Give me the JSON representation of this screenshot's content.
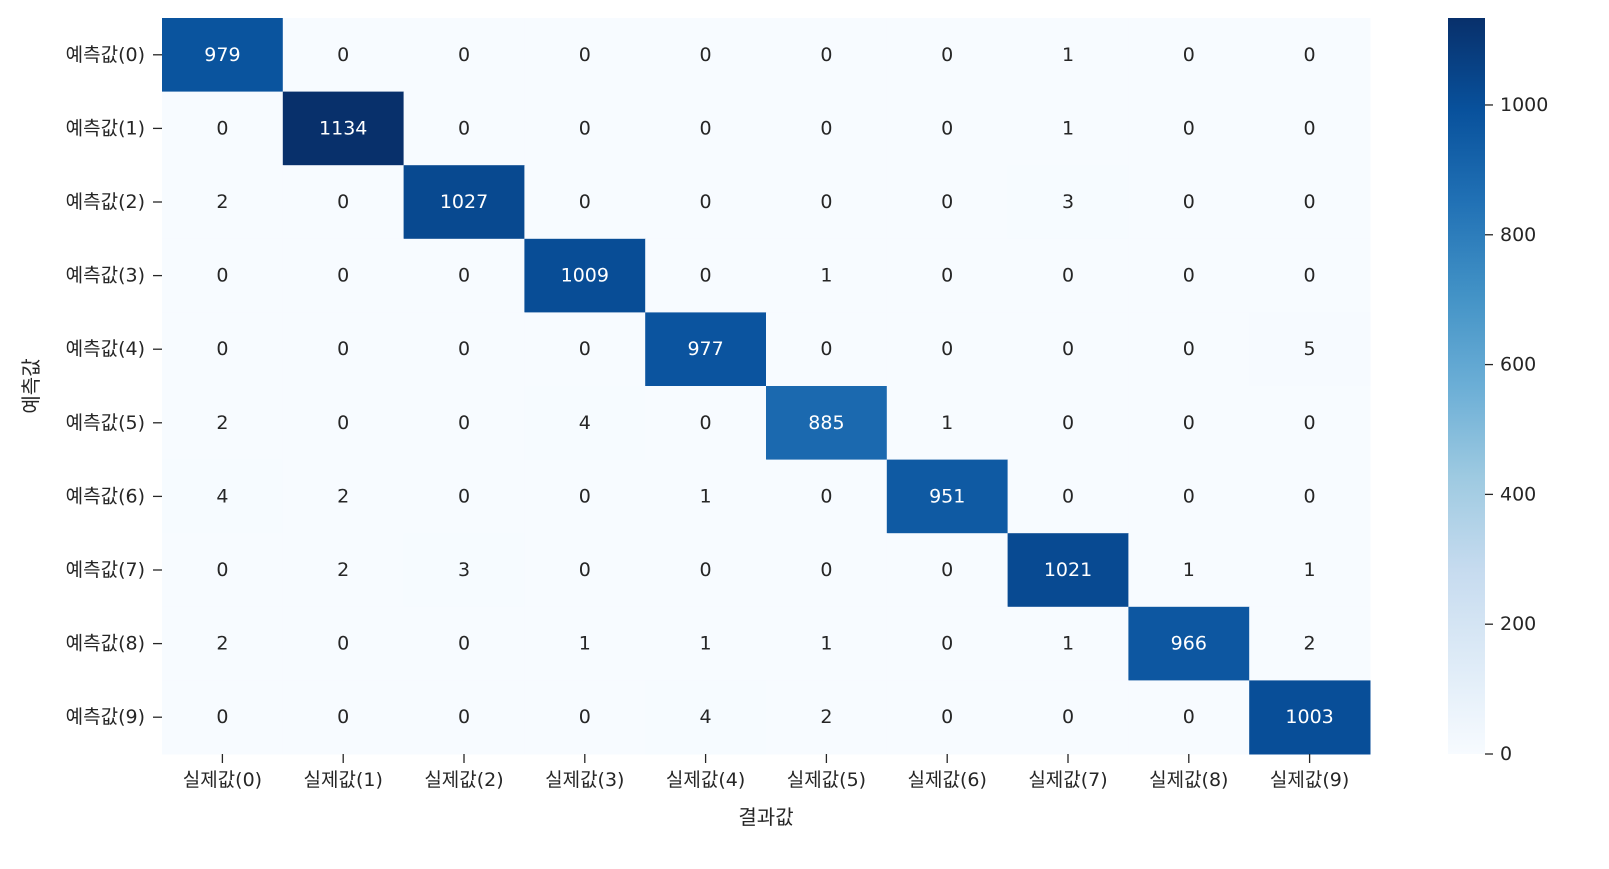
{
  "chart_data": {
    "type": "heatmap",
    "title": "",
    "xlabel": "결과값",
    "ylabel": "예측값",
    "x_categories": [
      "실제값(0)",
      "실제값(1)",
      "실제값(2)",
      "실제값(3)",
      "실제값(4)",
      "실제값(5)",
      "실제값(6)",
      "실제값(7)",
      "실제값(8)",
      "실제값(9)"
    ],
    "y_categories": [
      "예측값(0)",
      "예측값(1)",
      "예측값(2)",
      "예측값(3)",
      "예측값(4)",
      "예측값(5)",
      "예측값(6)",
      "예측값(7)",
      "예측값(8)",
      "예측값(9)"
    ],
    "values": [
      [
        979,
        0,
        0,
        0,
        0,
        0,
        0,
        1,
        0,
        0
      ],
      [
        0,
        1134,
        0,
        0,
        0,
        0,
        0,
        1,
        0,
        0
      ],
      [
        2,
        0,
        1027,
        0,
        0,
        0,
        0,
        3,
        0,
        0
      ],
      [
        0,
        0,
        0,
        1009,
        0,
        1,
        0,
        0,
        0,
        0
      ],
      [
        0,
        0,
        0,
        0,
        977,
        0,
        0,
        0,
        0,
        5
      ],
      [
        2,
        0,
        0,
        4,
        0,
        885,
        1,
        0,
        0,
        0
      ],
      [
        4,
        2,
        0,
        0,
        1,
        0,
        951,
        0,
        0,
        0
      ],
      [
        0,
        2,
        3,
        0,
        0,
        0,
        0,
        1021,
        1,
        1
      ],
      [
        2,
        0,
        0,
        1,
        1,
        1,
        0,
        1,
        966,
        2
      ],
      [
        0,
        0,
        0,
        0,
        4,
        2,
        0,
        0,
        0,
        1003
      ]
    ],
    "colormap": "Blues",
    "colorbar": {
      "range": [
        0,
        1134
      ],
      "ticks": [
        0,
        200,
        400,
        600,
        800,
        1000
      ],
      "colors": [
        "#f7fbff",
        "#deebf7",
        "#c6dbef",
        "#9ecae1",
        "#6baed6",
        "#4292c6",
        "#2171b5",
        "#08519c",
        "#08306b"
      ]
    },
    "annotation_colors": {
      "dark": "#262626",
      "light": "#ffffff"
    },
    "grid": false,
    "legend": "colorbar-right"
  }
}
